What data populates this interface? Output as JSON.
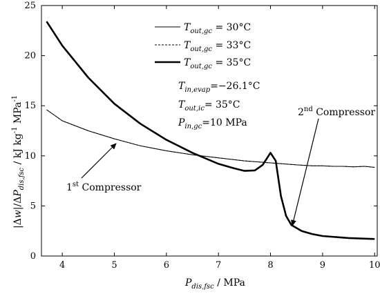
{
  "chart_data": {
    "type": "line",
    "xlabel": "P_dis,fsc / MPa",
    "ylabel": "|Δw|/ΔP_dis,fsc / kJ kg⁻¹ MPa⁻¹",
    "xlim": [
      3.6,
      10.05
    ],
    "ylim": [
      0,
      25
    ],
    "x_ticks": [
      "4",
      "5",
      "6",
      "7",
      "8",
      "9",
      "10"
    ],
    "y_ticks": [
      "0",
      "5",
      "10",
      "15",
      "20",
      "25"
    ],
    "series": [
      {
        "name": "T_out,gc = 30°C",
        "style": "thin",
        "x": [
          3.7,
          4.0,
          4.5,
          5.0,
          5.5,
          6.0,
          6.5,
          7.0,
          7.5,
          8.0,
          8.5,
          8.8,
          9.0,
          9.2,
          9.4,
          9.6,
          9.8,
          10.0
        ],
        "y": [
          14.6,
          13.5,
          12.5,
          11.7,
          11.0,
          10.5,
          10.1,
          9.8,
          9.5,
          9.3,
          9.1,
          9.0,
          9.0,
          8.95,
          8.95,
          8.9,
          8.95,
          8.85
        ]
      },
      {
        "name": "T_out,gc = 33°C",
        "style": "dashed",
        "x": [
          3.7,
          4.0,
          4.5,
          5.0,
          5.5,
          6.0,
          6.5,
          7.0,
          7.5,
          8.0,
          8.5,
          8.8,
          9.0,
          9.2,
          9.4,
          9.6,
          9.8,
          10.0
        ],
        "y": [
          14.6,
          13.5,
          12.5,
          11.7,
          11.0,
          10.5,
          10.1,
          9.8,
          9.5,
          9.3,
          9.1,
          9.0,
          9.0,
          8.95,
          8.95,
          8.9,
          8.95,
          8.85
        ]
      },
      {
        "name": "T_out,gc = 35°C",
        "style": "thick",
        "x": [
          3.7,
          4.0,
          4.5,
          5.0,
          5.5,
          6.0,
          6.5,
          7.0,
          7.3,
          7.5,
          7.7,
          7.85,
          8.0,
          8.1,
          8.2,
          8.3,
          8.4,
          8.6,
          8.8,
          9.0,
          9.5,
          10.0
        ],
        "y": [
          23.4,
          21.0,
          17.8,
          15.2,
          13.2,
          11.6,
          10.3,
          9.2,
          8.75,
          8.5,
          8.55,
          9.1,
          10.3,
          9.5,
          6.0,
          4.0,
          3.1,
          2.5,
          2.2,
          2.0,
          1.8,
          1.7
        ]
      }
    ],
    "legend": {
      "placement": "top-center",
      "items": [
        {
          "var": "T",
          "sub": "out,gc",
          "value": " = 30°C",
          "style": "thin"
        },
        {
          "var": "T",
          "sub": "out,gc",
          "value": " = 33°C",
          "style": "dashed"
        },
        {
          "var": "T",
          "sub": "out,gc",
          "value": " = 35°C",
          "style": "thick"
        }
      ]
    },
    "parameters": [
      {
        "var": "T",
        "sub": "in,evap",
        "value": "=−26.1°C"
      },
      {
        "var": "T",
        "sub": "out,ic",
        "value": "= 35°C"
      },
      {
        "var": "P",
        "sub": "in,gc",
        "value": "=10 MPa"
      }
    ],
    "annotations": [
      {
        "prefix": "1",
        "sup": "st",
        "rest": " Compressor",
        "points_to": [
          5.2,
          11.4
        ]
      },
      {
        "prefix": "2",
        "sup": "nd",
        "rest": " Compressor",
        "points_to": [
          8.45,
          3.0
        ]
      }
    ]
  },
  "labels": {
    "x_var": "P",
    "x_sub": "dis,fsc",
    "x_unit": " / MPa",
    "y_prefix": "|Δ",
    "y_w": "w",
    "y_mid": "|/Δ",
    "y_var": "P",
    "y_sub": "dis,fsc",
    "y_unit": " / kJ kg",
    "y_unit_sup": "-1",
    "y_unit_end": " MPa",
    "y_unit_end_sup": "-1"
  }
}
